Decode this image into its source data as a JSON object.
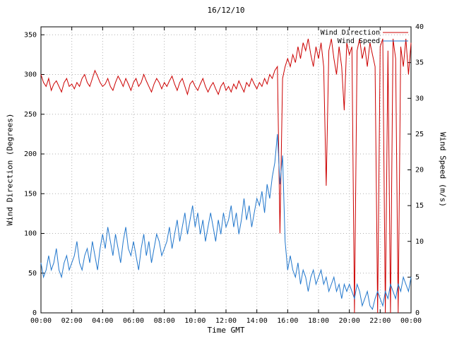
{
  "chart_data": {
    "type": "line",
    "title": "16/12/10",
    "xlabel": "Time GMT",
    "ylabel_left": "Wind Direction (Degrees)",
    "ylabel_right": "Wind Speed (m/s)",
    "x_tick_labels": [
      "00:00",
      "02:00",
      "04:00",
      "06:00",
      "08:00",
      "10:00",
      "12:00",
      "14:00",
      "16:00",
      "18:00",
      "20:00",
      "22:00",
      "00:00"
    ],
    "x_tick_hours": [
      0,
      2,
      4,
      6,
      8,
      10,
      12,
      14,
      16,
      18,
      20,
      22,
      24
    ],
    "y_left_ticks": [
      0,
      50,
      100,
      150,
      200,
      250,
      300,
      350
    ],
    "y_right_ticks": [
      0,
      5,
      10,
      15,
      20,
      25,
      30,
      35,
      40
    ],
    "y_left_range": [
      0,
      360
    ],
    "y_right_range": [
      0,
      40
    ],
    "x_range_hours": [
      0,
      24
    ],
    "sample_step_minutes": 10,
    "grid": true,
    "legend_position": "top-right",
    "colors": {
      "axis": "#000000",
      "grid": "#b0b0b0"
    },
    "series": [
      {
        "name": "Wind Direction",
        "color": "#cc0000",
        "axis": "left",
        "values": [
          300,
          290,
          285,
          295,
          280,
          288,
          292,
          285,
          278,
          290,
          295,
          285,
          288,
          282,
          290,
          285,
          295,
          300,
          290,
          285,
          295,
          305,
          298,
          290,
          285,
          288,
          295,
          285,
          280,
          290,
          298,
          292,
          285,
          295,
          288,
          280,
          290,
          295,
          285,
          290,
          300,
          292,
          285,
          278,
          288,
          295,
          290,
          282,
          290,
          285,
          292,
          298,
          288,
          280,
          290,
          295,
          285,
          275,
          288,
          292,
          285,
          280,
          288,
          295,
          285,
          278,
          285,
          290,
          282,
          275,
          285,
          290,
          280,
          285,
          278,
          288,
          282,
          292,
          285,
          278,
          290,
          285,
          295,
          288,
          282,
          290,
          285,
          295,
          288,
          300,
          295,
          305,
          310,
          100,
          295,
          310,
          320,
          310,
          325,
          315,
          335,
          320,
          340,
          330,
          345,
          325,
          310,
          335,
          320,
          340,
          310,
          160,
          330,
          345,
          320,
          300,
          335,
          310,
          255,
          340,
          325,
          335,
          0,
          330,
          345,
          320,
          335,
          310,
          340,
          325,
          310,
          0,
          335,
          345,
          0,
          330,
          0,
          345,
          320,
          0,
          335,
          310,
          345,
          300,
          340
        ]
      },
      {
        "name": "Wind Speed",
        "color": "#2277cc",
        "axis": "right",
        "values": [
          7,
          5,
          6,
          8,
          6,
          7,
          9,
          6,
          5,
          7,
          8,
          6,
          7,
          8,
          10,
          7,
          6,
          8,
          9,
          7,
          10,
          8,
          6,
          9,
          11,
          9,
          12,
          10,
          8,
          11,
          9,
          7,
          10,
          12,
          9,
          8,
          10,
          8,
          6,
          9,
          11,
          8,
          10,
          7,
          9,
          11,
          10,
          8,
          9,
          10,
          12,
          9,
          11,
          13,
          10,
          12,
          14,
          11,
          13,
          15,
          12,
          14,
          11,
          13,
          10,
          12,
          14,
          12,
          10,
          13,
          11,
          14,
          12,
          13,
          15,
          12,
          14,
          11,
          13,
          16,
          13,
          15,
          12,
          14,
          16,
          15,
          17,
          14,
          18,
          16,
          19,
          21,
          25,
          18,
          22,
          10,
          6,
          8,
          6,
          5,
          7,
          4,
          6,
          5,
          3,
          5,
          6,
          4,
          5,
          6,
          4,
          5,
          3,
          4,
          5,
          3,
          4,
          2,
          4,
          3,
          4,
          3,
          2,
          4,
          3,
          1,
          2,
          3,
          1,
          0.5,
          2,
          3,
          2,
          1,
          3,
          2,
          4,
          3,
          2,
          4,
          3,
          5,
          4,
          3,
          5
        ]
      }
    ]
  }
}
